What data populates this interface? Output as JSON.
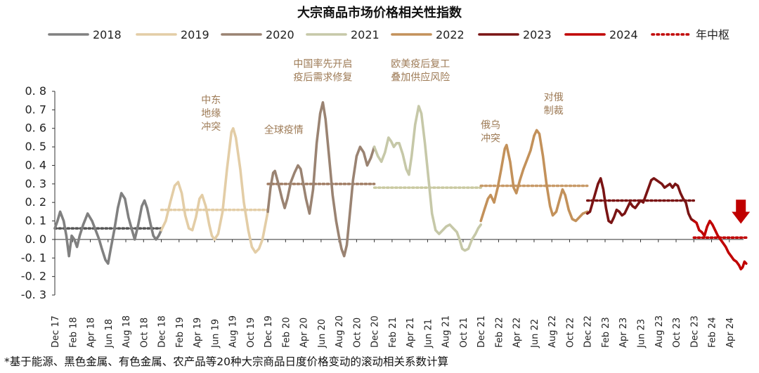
{
  "chart_data": {
    "type": "line",
    "title": "大宗商品市场价格相关性指数",
    "footnote": "*基于能源、黑色金属、有色金属、农产品等20种大宗商品日度价格变动的滚动相关系数计算",
    "ylim": [
      -0.3,
      0.8
    ],
    "yticks": [
      "-0.3",
      "-0.2",
      "-0.1",
      "0.0",
      "0.1",
      "0.2",
      "0.3",
      "0.4",
      "0.5",
      "0.6",
      "0.7",
      "0.8"
    ],
    "x_tick_labels": [
      "Dec 17",
      "Feb 18",
      "Apr 18",
      "Jun 18",
      "Aug 18",
      "Oct 18",
      "Dec 18",
      "Feb 19",
      "Apr 19",
      "Jun 19",
      "Aug 19",
      "Oct 19",
      "Dec 19",
      "Feb 20",
      "Apr 20",
      "Jun 20",
      "Aug 20",
      "Oct 20",
      "Dec 20",
      "Feb 21",
      "Apr 21",
      "Jun 21",
      "Aug 21",
      "Oct 21",
      "Dec 21",
      "Feb 22",
      "Apr 22",
      "Jun 22",
      "Aug 22",
      "Oct 22",
      "Dec 22",
      "Feb 23",
      "Apr 23",
      "Jun 23",
      "Aug 23",
      "Oct 23",
      "Dec 23",
      "Feb 24",
      "Apr 24"
    ],
    "series": [
      {
        "name": "2018",
        "color": "#808080",
        "midyear": 0.06,
        "start": 0,
        "end": 6,
        "points": [
          [
            0,
            0.06
          ],
          [
            0.15,
            0.1
          ],
          [
            0.3,
            0.15
          ],
          [
            0.5,
            0.1
          ],
          [
            0.65,
            0.02
          ],
          [
            0.8,
            -0.09
          ],
          [
            0.95,
            0.02
          ],
          [
            1.1,
            0.0
          ],
          [
            1.25,
            -0.04
          ],
          [
            1.4,
            0.02
          ],
          [
            1.6,
            0.08
          ],
          [
            1.85,
            0.14
          ],
          [
            2.1,
            0.1
          ],
          [
            2.3,
            0.05
          ],
          [
            2.5,
            0.0
          ],
          [
            2.65,
            -0.05
          ],
          [
            2.85,
            -0.11
          ],
          [
            3.0,
            -0.13
          ],
          [
            3.15,
            -0.05
          ],
          [
            3.35,
            0.05
          ],
          [
            3.55,
            0.17
          ],
          [
            3.75,
            0.25
          ],
          [
            3.95,
            0.22
          ],
          [
            4.15,
            0.12
          ],
          [
            4.35,
            0.05
          ],
          [
            4.5,
            0.0
          ],
          [
            4.7,
            0.08
          ],
          [
            4.9,
            0.18
          ],
          [
            5.05,
            0.21
          ],
          [
            5.2,
            0.17
          ],
          [
            5.4,
            0.08
          ],
          [
            5.55,
            0.02
          ],
          [
            5.7,
            0.0
          ],
          [
            5.85,
            0.02
          ],
          [
            6.0,
            0.05
          ]
        ]
      },
      {
        "name": "2019",
        "color": "#e3cda6",
        "midyear": 0.16,
        "start": 6,
        "end": 12,
        "points": [
          [
            6.0,
            0.05
          ],
          [
            6.25,
            0.1
          ],
          [
            6.5,
            0.2
          ],
          [
            6.75,
            0.29
          ],
          [
            6.95,
            0.31
          ],
          [
            7.15,
            0.25
          ],
          [
            7.35,
            0.13
          ],
          [
            7.55,
            0.06
          ],
          [
            7.75,
            0.05
          ],
          [
            7.95,
            0.12
          ],
          [
            8.15,
            0.22
          ],
          [
            8.3,
            0.24
          ],
          [
            8.5,
            0.18
          ],
          [
            8.7,
            0.08
          ],
          [
            8.85,
            0.02
          ],
          [
            9.0,
            0.0
          ],
          [
            9.2,
            0.03
          ],
          [
            9.45,
            0.15
          ],
          [
            9.7,
            0.38
          ],
          [
            9.95,
            0.58
          ],
          [
            10.05,
            0.6
          ],
          [
            10.2,
            0.55
          ],
          [
            10.45,
            0.38
          ],
          [
            10.65,
            0.2
          ],
          [
            10.9,
            0.05
          ],
          [
            11.1,
            -0.04
          ],
          [
            11.3,
            -0.07
          ],
          [
            11.5,
            -0.05
          ],
          [
            11.7,
            0.0
          ],
          [
            11.9,
            0.1
          ],
          [
            12.0,
            0.15
          ]
        ]
      },
      {
        "name": "2020",
        "color": "#9a8372",
        "midyear": 0.3,
        "start": 12,
        "end": 18,
        "points": [
          [
            12.0,
            0.15
          ],
          [
            12.15,
            0.28
          ],
          [
            12.3,
            0.36
          ],
          [
            12.4,
            0.37
          ],
          [
            12.6,
            0.3
          ],
          [
            12.8,
            0.22
          ],
          [
            12.95,
            0.17
          ],
          [
            13.1,
            0.22
          ],
          [
            13.3,
            0.31
          ],
          [
            13.5,
            0.36
          ],
          [
            13.7,
            0.4
          ],
          [
            13.85,
            0.38
          ],
          [
            14.0,
            0.3
          ],
          [
            14.15,
            0.22
          ],
          [
            14.35,
            0.14
          ],
          [
            14.55,
            0.27
          ],
          [
            14.75,
            0.52
          ],
          [
            14.95,
            0.68
          ],
          [
            15.1,
            0.74
          ],
          [
            15.25,
            0.65
          ],
          [
            15.45,
            0.45
          ],
          [
            15.65,
            0.24
          ],
          [
            15.85,
            0.1
          ],
          [
            16.0,
            0.02
          ],
          [
            16.15,
            -0.05
          ],
          [
            16.3,
            -0.09
          ],
          [
            16.45,
            -0.03
          ],
          [
            16.6,
            0.12
          ],
          [
            16.8,
            0.32
          ],
          [
            17.0,
            0.45
          ],
          [
            17.2,
            0.5
          ],
          [
            17.4,
            0.47
          ],
          [
            17.6,
            0.4
          ],
          [
            17.8,
            0.44
          ],
          [
            18.0,
            0.5
          ]
        ]
      },
      {
        "name": "2021",
        "color": "#c6c8a8",
        "midyear": 0.28,
        "start": 18,
        "end": 24,
        "points": [
          [
            18.0,
            0.5
          ],
          [
            18.2,
            0.45
          ],
          [
            18.4,
            0.42
          ],
          [
            18.6,
            0.47
          ],
          [
            18.8,
            0.55
          ],
          [
            18.95,
            0.53
          ],
          [
            19.1,
            0.5
          ],
          [
            19.25,
            0.52
          ],
          [
            19.4,
            0.52
          ],
          [
            19.6,
            0.46
          ],
          [
            19.8,
            0.38
          ],
          [
            19.95,
            0.35
          ],
          [
            20.1,
            0.45
          ],
          [
            20.3,
            0.62
          ],
          [
            20.5,
            0.72
          ],
          [
            20.65,
            0.68
          ],
          [
            20.85,
            0.52
          ],
          [
            21.05,
            0.33
          ],
          [
            21.25,
            0.14
          ],
          [
            21.45,
            0.05
          ],
          [
            21.65,
            0.03
          ],
          [
            21.85,
            0.05
          ],
          [
            22.05,
            0.07
          ],
          [
            22.25,
            0.08
          ],
          [
            22.45,
            0.06
          ],
          [
            22.65,
            0.04
          ],
          [
            22.8,
            0.0
          ],
          [
            22.95,
            -0.05
          ],
          [
            23.1,
            -0.06
          ],
          [
            23.3,
            -0.05
          ],
          [
            23.5,
            0.0
          ],
          [
            23.7,
            0.03
          ],
          [
            23.85,
            0.06
          ],
          [
            24.0,
            0.08
          ]
        ]
      },
      {
        "name": "2022",
        "color": "#c3915a",
        "midyear": 0.29,
        "start": 24,
        "end": 30,
        "points": [
          [
            24.0,
            0.1
          ],
          [
            24.2,
            0.16
          ],
          [
            24.4,
            0.22
          ],
          [
            24.55,
            0.24
          ],
          [
            24.75,
            0.2
          ],
          [
            24.95,
            0.28
          ],
          [
            25.15,
            0.38
          ],
          [
            25.35,
            0.49
          ],
          [
            25.45,
            0.51
          ],
          [
            25.65,
            0.42
          ],
          [
            25.85,
            0.28
          ],
          [
            26.0,
            0.25
          ],
          [
            26.2,
            0.32
          ],
          [
            26.4,
            0.38
          ],
          [
            26.6,
            0.43
          ],
          [
            26.8,
            0.48
          ],
          [
            27.0,
            0.56
          ],
          [
            27.15,
            0.59
          ],
          [
            27.3,
            0.57
          ],
          [
            27.5,
            0.45
          ],
          [
            27.7,
            0.3
          ],
          [
            27.9,
            0.18
          ],
          [
            28.05,
            0.13
          ],
          [
            28.25,
            0.15
          ],
          [
            28.45,
            0.22
          ],
          [
            28.6,
            0.27
          ],
          [
            28.75,
            0.24
          ],
          [
            28.95,
            0.16
          ],
          [
            29.15,
            0.11
          ],
          [
            29.35,
            0.1
          ],
          [
            29.55,
            0.12
          ],
          [
            29.75,
            0.14
          ],
          [
            30.0,
            0.15
          ]
        ]
      },
      {
        "name": "2023",
        "color": "#7a1414",
        "midyear": 0.21,
        "start": 30,
        "end": 36,
        "points": [
          [
            30.0,
            0.14
          ],
          [
            30.15,
            0.15
          ],
          [
            30.3,
            0.2
          ],
          [
            30.45,
            0.25
          ],
          [
            30.6,
            0.3
          ],
          [
            30.75,
            0.33
          ],
          [
            30.9,
            0.27
          ],
          [
            31.05,
            0.17
          ],
          [
            31.2,
            0.1
          ],
          [
            31.35,
            0.09
          ],
          [
            31.5,
            0.12
          ],
          [
            31.65,
            0.16
          ],
          [
            31.8,
            0.15
          ],
          [
            31.95,
            0.13
          ],
          [
            32.1,
            0.14
          ],
          [
            32.25,
            0.17
          ],
          [
            32.4,
            0.2
          ],
          [
            32.55,
            0.18
          ],
          [
            32.7,
            0.17
          ],
          [
            32.85,
            0.19
          ],
          [
            33.0,
            0.21
          ],
          [
            33.15,
            0.2
          ],
          [
            33.3,
            0.24
          ],
          [
            33.45,
            0.28
          ],
          [
            33.6,
            0.32
          ],
          [
            33.75,
            0.33
          ],
          [
            33.9,
            0.32
          ],
          [
            34.05,
            0.31
          ],
          [
            34.2,
            0.3
          ],
          [
            34.35,
            0.28
          ],
          [
            34.5,
            0.29
          ],
          [
            34.65,
            0.3
          ],
          [
            34.8,
            0.28
          ],
          [
            34.95,
            0.3
          ],
          [
            35.1,
            0.29
          ],
          [
            35.25,
            0.25
          ],
          [
            35.4,
            0.22
          ],
          [
            35.55,
            0.2
          ],
          [
            35.7,
            0.14
          ],
          [
            35.85,
            0.11
          ],
          [
            36.0,
            0.1
          ]
        ]
      },
      {
        "name": "2024",
        "color": "#c00000",
        "midyear": 0.01,
        "start": 36,
        "end": 38.95,
        "points": [
          [
            36.0,
            0.1
          ],
          [
            36.15,
            0.09
          ],
          [
            36.3,
            0.05
          ],
          [
            36.45,
            0.04
          ],
          [
            36.6,
            0.02
          ],
          [
            36.75,
            0.07
          ],
          [
            36.9,
            0.1
          ],
          [
            37.05,
            0.08
          ],
          [
            37.2,
            0.05
          ],
          [
            37.35,
            0.02
          ],
          [
            37.5,
            0.0
          ],
          [
            37.65,
            -0.02
          ],
          [
            37.8,
            -0.04
          ],
          [
            37.95,
            -0.07
          ],
          [
            38.1,
            -0.09
          ],
          [
            38.25,
            -0.11
          ],
          [
            38.4,
            -0.12
          ],
          [
            38.55,
            -0.14
          ],
          [
            38.65,
            -0.16
          ],
          [
            38.75,
            -0.15
          ],
          [
            38.85,
            -0.12
          ],
          [
            38.95,
            -0.13
          ]
        ]
      }
    ],
    "legend": {
      "midyear_label": "年中枢",
      "midyear_color": "#c00000",
      "placement": "top"
    },
    "annotations": [
      {
        "lines": [
          "中东",
          "地缘",
          "冲突"
        ],
        "x": 8.8,
        "y": 0.735,
        "color": "#c8a473"
      },
      {
        "lines": [
          "全球疫情"
        ],
        "x": 12.9,
        "y": 0.575,
        "color": "#9a8372"
      },
      {
        "lines": [
          "中国率先开启",
          "疫后需求修复"
        ],
        "x": 15.1,
        "y": 0.93,
        "color": "#9a8372"
      },
      {
        "lines": [
          "欧美疫后复工",
          "叠加供应风险"
        ],
        "x": 20.6,
        "y": 0.93,
        "color": "#9a8372"
      },
      {
        "lines": [
          "俄乌",
          "冲突"
        ],
        "x": 24.55,
        "y": 0.6,
        "color": "#c3915a"
      },
      {
        "lines": [
          "对俄",
          "制裁"
        ],
        "x": 28.1,
        "y": 0.75,
        "color": "#c3915a"
      }
    ],
    "arrow": {
      "x": 38.65,
      "y_top": 0.215,
      "y_bottom": 0.085,
      "color": "#c00000"
    }
  }
}
